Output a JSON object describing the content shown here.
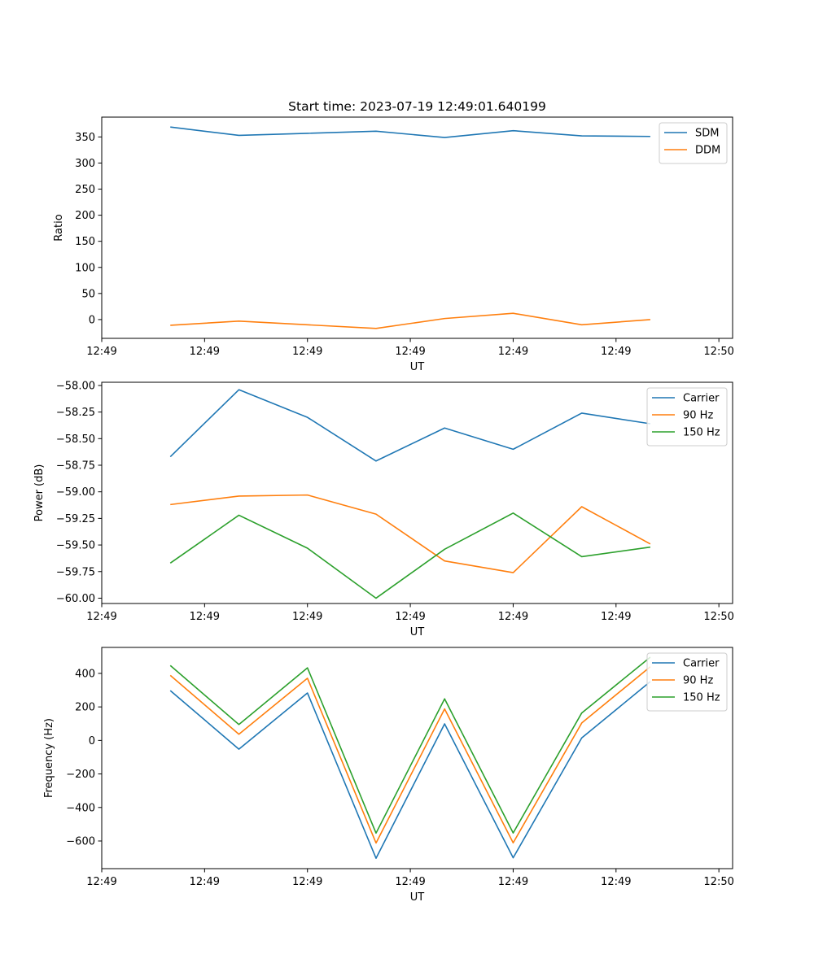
{
  "chart_data": [
    {
      "type": "line",
      "title": "Start time: 2023-07-19 12:49:01.640199",
      "xlabel": "UT",
      "ylabel": "Ratio",
      "x": [
        1,
        2,
        3,
        4,
        5,
        6,
        7,
        8
      ],
      "xlim": [
        0,
        9.2
      ],
      "xtick_values": [
        0,
        1.5,
        3,
        4.5,
        6,
        7.5,
        9
      ],
      "xtick_labels": [
        "12:49",
        "12:49",
        "12:49",
        "12:49",
        "12:49",
        "12:49",
        "12:50"
      ],
      "ylim": [
        -36,
        388
      ],
      "yticks": [
        0,
        50,
        100,
        150,
        200,
        250,
        300,
        350
      ],
      "ytick_labels": [
        "0",
        "50",
        "100",
        "150",
        "200",
        "250",
        "300",
        "350"
      ],
      "legend": "top-right",
      "series": [
        {
          "name": "SDM",
          "color": "#1f77b4",
          "values": [
            369,
            353,
            357,
            361,
            349,
            362,
            352,
            351
          ]
        },
        {
          "name": "DDM",
          "color": "#ff7f0e",
          "values": [
            -11,
            -3,
            -10,
            -17,
            2,
            12,
            -10,
            0
          ]
        }
      ]
    },
    {
      "type": "line",
      "title": "",
      "xlabel": "UT",
      "ylabel": "Power (dB)",
      "x": [
        1,
        2,
        3,
        4,
        5,
        6,
        7,
        8
      ],
      "xlim": [
        0,
        9.2
      ],
      "xtick_values": [
        0,
        1.5,
        3,
        4.5,
        6,
        7.5,
        9
      ],
      "xtick_labels": [
        "12:49",
        "12:49",
        "12:49",
        "12:49",
        "12:49",
        "12:49",
        "12:50"
      ],
      "ylim": [
        -60.05,
        -57.97
      ],
      "yticks": [
        -58.0,
        -58.25,
        -58.5,
        -58.75,
        -59.0,
        -59.25,
        -59.5,
        -59.75,
        -60.0
      ],
      "ytick_labels": [
        "−58.00",
        "−58.25",
        "−58.50",
        "−58.75",
        "−59.00",
        "−59.25",
        "−59.50",
        "−59.75",
        "−60.00"
      ],
      "legend": "top-right",
      "series": [
        {
          "name": "Carrier",
          "color": "#1f77b4",
          "values": [
            -58.67,
            -58.04,
            -58.3,
            -58.71,
            -58.4,
            -58.6,
            -58.26,
            -58.36
          ]
        },
        {
          "name": "90 Hz",
          "color": "#ff7f0e",
          "values": [
            -59.12,
            -59.04,
            -59.03,
            -59.21,
            -59.65,
            -59.76,
            -59.14,
            -59.49
          ]
        },
        {
          "name": "150 Hz",
          "color": "#2ca02c",
          "values": [
            -59.67,
            -59.22,
            -59.53,
            -60.0,
            -59.54,
            -59.2,
            -59.61,
            -59.52
          ]
        }
      ]
    },
    {
      "type": "line",
      "title": "",
      "xlabel": "UT",
      "ylabel": "Frequency (Hz)",
      "x": [
        1,
        2,
        3,
        4,
        5,
        6,
        7,
        8
      ],
      "xlim": [
        0,
        9.2
      ],
      "xtick_values": [
        0,
        1.5,
        3,
        4.5,
        6,
        7.5,
        9
      ],
      "xtick_labels": [
        "12:49",
        "12:49",
        "12:49",
        "12:49",
        "12:49",
        "12:49",
        "12:50"
      ],
      "ylim": [
        -765,
        555
      ],
      "yticks": [
        400,
        200,
        0,
        -200,
        -400,
        -600
      ],
      "ytick_labels": [
        "400",
        "200",
        "0",
        "−200",
        "−400",
        "−600"
      ],
      "legend": "top-right",
      "series": [
        {
          "name": "Carrier",
          "color": "#1f77b4",
          "values": [
            297,
            -52,
            283,
            -703,
            99,
            -700,
            15,
            351
          ]
        },
        {
          "name": "90 Hz",
          "color": "#ff7f0e",
          "values": [
            388,
            37,
            371,
            -612,
            188,
            -611,
            104,
            440
          ]
        },
        {
          "name": "150 Hz",
          "color": "#2ca02c",
          "values": [
            447,
            95,
            433,
            -553,
            248,
            -552,
            164,
            497
          ]
        }
      ]
    }
  ]
}
